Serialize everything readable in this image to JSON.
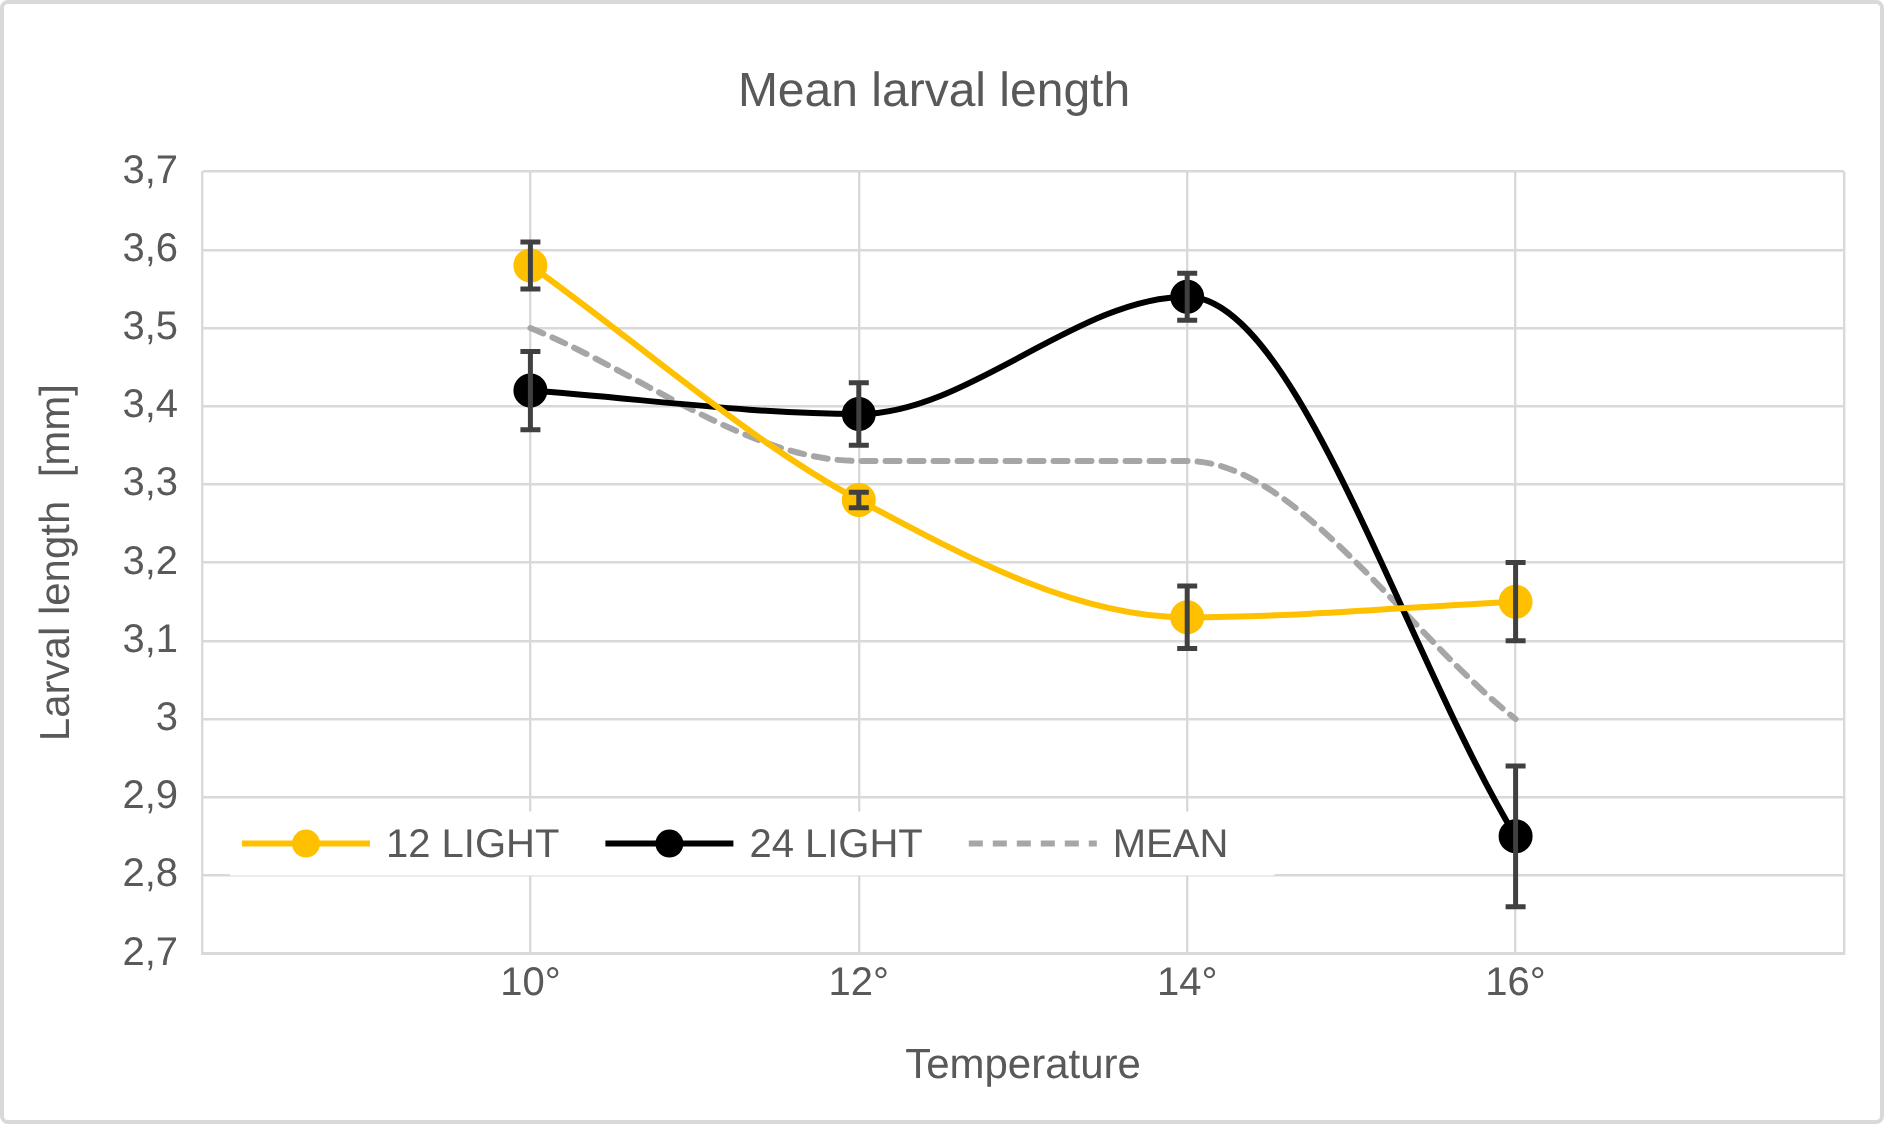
{
  "chart_data": {
    "type": "line",
    "title": "Mean larval length",
    "xlabel": "Temperature",
    "ylabel": "Larval length  [mm]",
    "x": [
      10,
      12,
      14,
      16
    ],
    "series": [
      {
        "name": "12 LIGHT",
        "color": "#ffc000",
        "values": [
          3.58,
          3.28,
          3.13,
          3.15
        ],
        "errors": [
          0.03,
          0.01,
          0.04,
          0.05
        ]
      },
      {
        "name": "24 LIGHT",
        "color": "#000000",
        "values": [
          3.42,
          3.39,
          3.54,
          2.85
        ],
        "errors": [
          0.05,
          0.04,
          0.03,
          0.09
        ]
      },
      {
        "name": "MEAN",
        "color": "#a6a6a6",
        "values": [
          3.5,
          3.33,
          3.33,
          3.0
        ],
        "marker": "none",
        "line_style": "dashed"
      }
    ],
    "xlim": [
      8,
      18
    ],
    "xticks": [
      {
        "value": 8,
        "label": null
      },
      {
        "value": 10,
        "label": "10°"
      },
      {
        "value": 12,
        "label": "12°"
      },
      {
        "value": 14,
        "label": "14°"
      },
      {
        "value": 16,
        "label": "16°"
      },
      {
        "value": 18,
        "label": null
      }
    ],
    "ylim": [
      2.7,
      3.7
    ],
    "yticks": [
      {
        "value": 2.7,
        "label": "2,7"
      },
      {
        "value": 2.8,
        "label": "2,8"
      },
      {
        "value": 2.9,
        "label": "2,9"
      },
      3,
      {
        "value": 3.1,
        "label": "3,1"
      },
      {
        "value": 3.2,
        "label": "3,2"
      },
      {
        "value": 3.3,
        "label": "3,3"
      },
      {
        "value": 3.4,
        "label": "3,4"
      },
      {
        "value": 3.5,
        "label": "3,5"
      },
      {
        "value": 3.6,
        "label": "3,6"
      },
      {
        "value": 3.7,
        "label": "3,7"
      }
    ],
    "grid": true,
    "legend": "bottom left",
    "marker": "circle",
    "line_style": "solid"
  }
}
